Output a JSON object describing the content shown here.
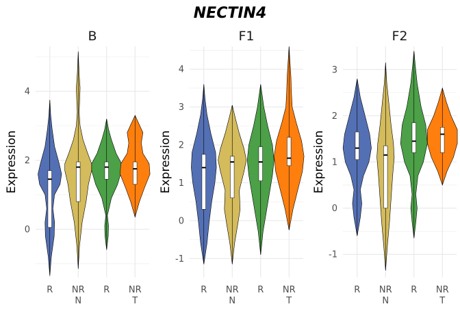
{
  "title": "NECTIN4",
  "colors": {
    "R1": "#5470b4",
    "NRN": "#d4bb5c",
    "R2": "#4ca048",
    "NRT": "#ff7f0e"
  },
  "chart_data": [
    {
      "type": "violin",
      "panel_title": "B",
      "ylabel": "Expression",
      "ylim": [
        -1.4,
        5.3
      ],
      "yticks": [
        0,
        2,
        4
      ],
      "categories": [
        {
          "line1": "R",
          "line2": ""
        },
        {
          "line1": "NR",
          "line2": "N"
        },
        {
          "line1": "R",
          "line2": ""
        },
        {
          "line1": "NR",
          "line2": "T"
        }
      ],
      "series": [
        {
          "min": -1.35,
          "max": 3.75,
          "q1": 0.05,
          "median": 1.45,
          "q3": 1.7,
          "profile": [
            [
              -1.35,
              0
            ],
            [
              -0.8,
              0.1
            ],
            [
              -0.2,
              0.28
            ],
            [
              0.2,
              0.3
            ],
            [
              0.6,
              0.2
            ],
            [
              1.0,
              0.3
            ],
            [
              1.3,
              0.65
            ],
            [
              1.6,
              0.75
            ],
            [
              1.9,
              0.6
            ],
            [
              2.4,
              0.3
            ],
            [
              2.9,
              0.15
            ],
            [
              3.3,
              0.06
            ],
            [
              3.75,
              0
            ]
          ]
        },
        {
          "min": -1.15,
          "max": 5.15,
          "q1": 0.8,
          "median": 1.8,
          "q3": 1.95,
          "profile": [
            [
              -1.15,
              0
            ],
            [
              -0.5,
              0.08
            ],
            [
              0.2,
              0.25
            ],
            [
              0.8,
              0.5
            ],
            [
              1.3,
              0.65
            ],
            [
              1.7,
              0.85
            ],
            [
              1.9,
              0.85
            ],
            [
              2.2,
              0.6
            ],
            [
              2.6,
              0.3
            ],
            [
              3.0,
              0.12
            ],
            [
              3.4,
              0.06
            ],
            [
              3.8,
              0.1
            ],
            [
              4.1,
              0.12
            ],
            [
              4.5,
              0.06
            ],
            [
              5.15,
              0
            ]
          ]
        },
        {
          "min": -0.6,
          "max": 3.2,
          "q1": 1.45,
          "median": 1.8,
          "q3": 1.95,
          "profile": [
            [
              -0.6,
              0
            ],
            [
              -0.2,
              0.1
            ],
            [
              0.1,
              0.12
            ],
            [
              0.4,
              0.05
            ],
            [
              0.9,
              0.3
            ],
            [
              1.3,
              0.7
            ],
            [
              1.7,
              0.95
            ],
            [
              1.9,
              0.95
            ],
            [
              2.2,
              0.6
            ],
            [
              2.6,
              0.3
            ],
            [
              2.9,
              0.12
            ],
            [
              3.2,
              0
            ]
          ]
        },
        {
          "min": 0.35,
          "max": 3.3,
          "q1": 1.3,
          "median": 1.75,
          "q3": 1.95,
          "profile": [
            [
              0.35,
              0
            ],
            [
              0.8,
              0.28
            ],
            [
              1.2,
              0.6
            ],
            [
              1.6,
              0.95
            ],
            [
              1.9,
              0.9
            ],
            [
              2.2,
              0.5
            ],
            [
              2.5,
              0.4
            ],
            [
              2.8,
              0.5
            ],
            [
              3.0,
              0.3
            ],
            [
              3.3,
              0
            ]
          ]
        }
      ]
    },
    {
      "type": "violin",
      "panel_title": "F1",
      "ylabel": "Expression",
      "ylim": [
        -1.5,
        4.6
      ],
      "yticks": [
        -1,
        0,
        1,
        2,
        3,
        4
      ],
      "categories": [
        {
          "line1": "R",
          "line2": ""
        },
        {
          "line1": "NR",
          "line2": "N"
        },
        {
          "line1": "R",
          "line2": ""
        },
        {
          "line1": "NR",
          "line2": "T"
        }
      ],
      "series": [
        {
          "min": -1.15,
          "max": 3.6,
          "q1": 0.3,
          "median": 1.4,
          "q3": 1.75,
          "profile": [
            [
              -1.15,
              0
            ],
            [
              -0.6,
              0.2
            ],
            [
              0.0,
              0.35
            ],
            [
              0.5,
              0.5
            ],
            [
              1.0,
              0.7
            ],
            [
              1.4,
              0.8
            ],
            [
              1.8,
              0.75
            ],
            [
              2.3,
              0.45
            ],
            [
              2.8,
              0.2
            ],
            [
              3.2,
              0.08
            ],
            [
              3.6,
              0
            ]
          ]
        },
        {
          "min": -1.15,
          "max": 3.05,
          "q1": 0.6,
          "median": 1.55,
          "q3": 1.7,
          "profile": [
            [
              -1.15,
              0
            ],
            [
              -0.6,
              0.15
            ],
            [
              -0.1,
              0.35
            ],
            [
              0.3,
              0.5
            ],
            [
              0.8,
              0.45
            ],
            [
              1.3,
              0.75
            ],
            [
              1.6,
              0.9
            ],
            [
              1.9,
              0.75
            ],
            [
              2.3,
              0.45
            ],
            [
              2.7,
              0.2
            ],
            [
              3.05,
              0
            ]
          ]
        },
        {
          "min": -0.9,
          "max": 3.6,
          "q1": 1.05,
          "median": 1.55,
          "q3": 1.95,
          "profile": [
            [
              -0.9,
              0
            ],
            [
              -0.3,
              0.15
            ],
            [
              0.2,
              0.35
            ],
            [
              0.7,
              0.55
            ],
            [
              1.2,
              0.75
            ],
            [
              1.6,
              0.85
            ],
            [
              2.0,
              0.75
            ],
            [
              2.5,
              0.45
            ],
            [
              3.0,
              0.2
            ],
            [
              3.6,
              0
            ]
          ]
        },
        {
          "min": -0.25,
          "max": 4.6,
          "q1": 1.45,
          "median": 1.65,
          "q3": 2.2,
          "profile": [
            [
              -0.25,
              0
            ],
            [
              0.3,
              0.25
            ],
            [
              0.8,
              0.55
            ],
            [
              1.3,
              0.85
            ],
            [
              1.7,
              0.95
            ],
            [
              2.1,
              0.8
            ],
            [
              2.6,
              0.45
            ],
            [
              3.0,
              0.2
            ],
            [
              3.4,
              0.15
            ],
            [
              3.8,
              0.12
            ],
            [
              4.2,
              0.06
            ],
            [
              4.6,
              0
            ]
          ]
        }
      ]
    },
    {
      "type": "violin",
      "panel_title": "F2",
      "ylabel": "Expression",
      "ylim": [
        -1.5,
        3.5
      ],
      "yticks": [
        -1,
        0,
        1,
        2,
        3
      ],
      "categories": [
        {
          "line1": "R",
          "line2": ""
        },
        {
          "line1": "NR",
          "line2": "N"
        },
        {
          "line1": "R",
          "line2": ""
        },
        {
          "line1": "NR",
          "line2": "T"
        }
      ],
      "series": [
        {
          "min": -0.6,
          "max": 2.8,
          "q1": 1.05,
          "median": 1.3,
          "q3": 1.65,
          "profile": [
            [
              -0.6,
              0
            ],
            [
              -0.2,
              0.2
            ],
            [
              0.1,
              0.3
            ],
            [
              0.4,
              0.2
            ],
            [
              0.7,
              0.4
            ],
            [
              1.0,
              0.75
            ],
            [
              1.3,
              0.9
            ],
            [
              1.6,
              0.8
            ],
            [
              2.0,
              0.5
            ],
            [
              2.4,
              0.2
            ],
            [
              2.8,
              0
            ]
          ]
        },
        {
          "min": -1.35,
          "max": 3.15,
          "q1": 0.0,
          "median": 1.15,
          "q3": 1.35,
          "profile": [
            [
              -1.35,
              0
            ],
            [
              -0.8,
              0.12
            ],
            [
              -0.3,
              0.25
            ],
            [
              0.2,
              0.35
            ],
            [
              0.7,
              0.45
            ],
            [
              1.1,
              0.55
            ],
            [
              1.4,
              0.5
            ],
            [
              1.8,
              0.35
            ],
            [
              2.3,
              0.2
            ],
            [
              2.7,
              0.08
            ],
            [
              3.15,
              0
            ]
          ]
        },
        {
          "min": -0.65,
          "max": 3.4,
          "q1": 1.2,
          "median": 1.45,
          "q3": 1.85,
          "profile": [
            [
              -0.65,
              0
            ],
            [
              -0.3,
              0.12
            ],
            [
              0.0,
              0.2
            ],
            [
              0.3,
              0.12
            ],
            [
              0.7,
              0.25
            ],
            [
              1.0,
              0.6
            ],
            [
              1.4,
              0.85
            ],
            [
              1.8,
              0.75
            ],
            [
              2.2,
              0.45
            ],
            [
              2.7,
              0.2
            ],
            [
              3.1,
              0.08
            ],
            [
              3.4,
              0
            ]
          ]
        },
        {
          "min": 0.5,
          "max": 2.6,
          "q1": 1.2,
          "median": 1.6,
          "q3": 1.75,
          "profile": [
            [
              0.5,
              0
            ],
            [
              0.8,
              0.3
            ],
            [
              1.1,
              0.7
            ],
            [
              1.4,
              0.95
            ],
            [
              1.7,
              0.95
            ],
            [
              2.0,
              0.55
            ],
            [
              2.3,
              0.25
            ],
            [
              2.6,
              0
            ]
          ]
        }
      ]
    }
  ]
}
